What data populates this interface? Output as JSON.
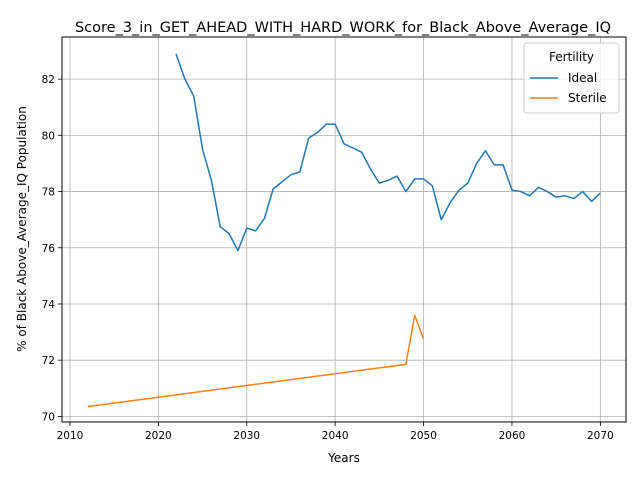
{
  "chart_data": {
    "type": "line",
    "title": "Score_3_in_GET_AHEAD_WITH_HARD_WORK_for_Black_Above_Average_IQ",
    "xlabel": "Years",
    "ylabel": "% of Black Above_Average_IQ Population",
    "xlim": [
      2009.1,
      2072.9
    ],
    "ylim": [
      69.8,
      83.5
    ],
    "xticks": [
      2010,
      2020,
      2030,
      2040,
      2050,
      2060,
      2070
    ],
    "yticks": [
      70,
      72,
      74,
      76,
      78,
      80,
      82
    ],
    "grid": true,
    "legend": {
      "title": "Fertility",
      "position": "top-right"
    },
    "series": [
      {
        "name": "Ideal",
        "color": "#1f77b4",
        "x": [
          2022,
          2023,
          2024,
          2025,
          2026,
          2027,
          2028,
          2029,
          2030,
          2031,
          2032,
          2033,
          2034,
          2035,
          2036,
          2037,
          2038,
          2039,
          2040,
          2041,
          2042,
          2043,
          2044,
          2045,
          2046,
          2047,
          2048,
          2049,
          2050,
          2051,
          2052,
          2053,
          2054,
          2055,
          2056,
          2057,
          2058,
          2059,
          2060,
          2061,
          2062,
          2063,
          2064,
          2065,
          2066,
          2067,
          2068,
          2069,
          2070
        ],
        "values": [
          82.9,
          82.0,
          81.4,
          79.5,
          78.4,
          76.75,
          76.5,
          75.9,
          76.7,
          76.6,
          77.05,
          78.1,
          78.35,
          78.6,
          78.7,
          79.9,
          80.1,
          80.4,
          80.4,
          79.7,
          79.55,
          79.4,
          78.8,
          78.3,
          78.4,
          78.55,
          78.0,
          78.45,
          78.45,
          78.2,
          77.0,
          77.6,
          78.05,
          78.3,
          79.0,
          79.45,
          78.95,
          78.95,
          78.05,
          78.0,
          77.85,
          78.15,
          78.0,
          77.8,
          77.85,
          77.75,
          78.0,
          77.65,
          77.95
        ]
      },
      {
        "name": "Sterile",
        "color": "#ff7f0e",
        "x": [
          2012,
          2048,
          2049,
          2050
        ],
        "values": [
          70.35,
          71.85,
          73.6,
          72.75
        ]
      }
    ]
  }
}
